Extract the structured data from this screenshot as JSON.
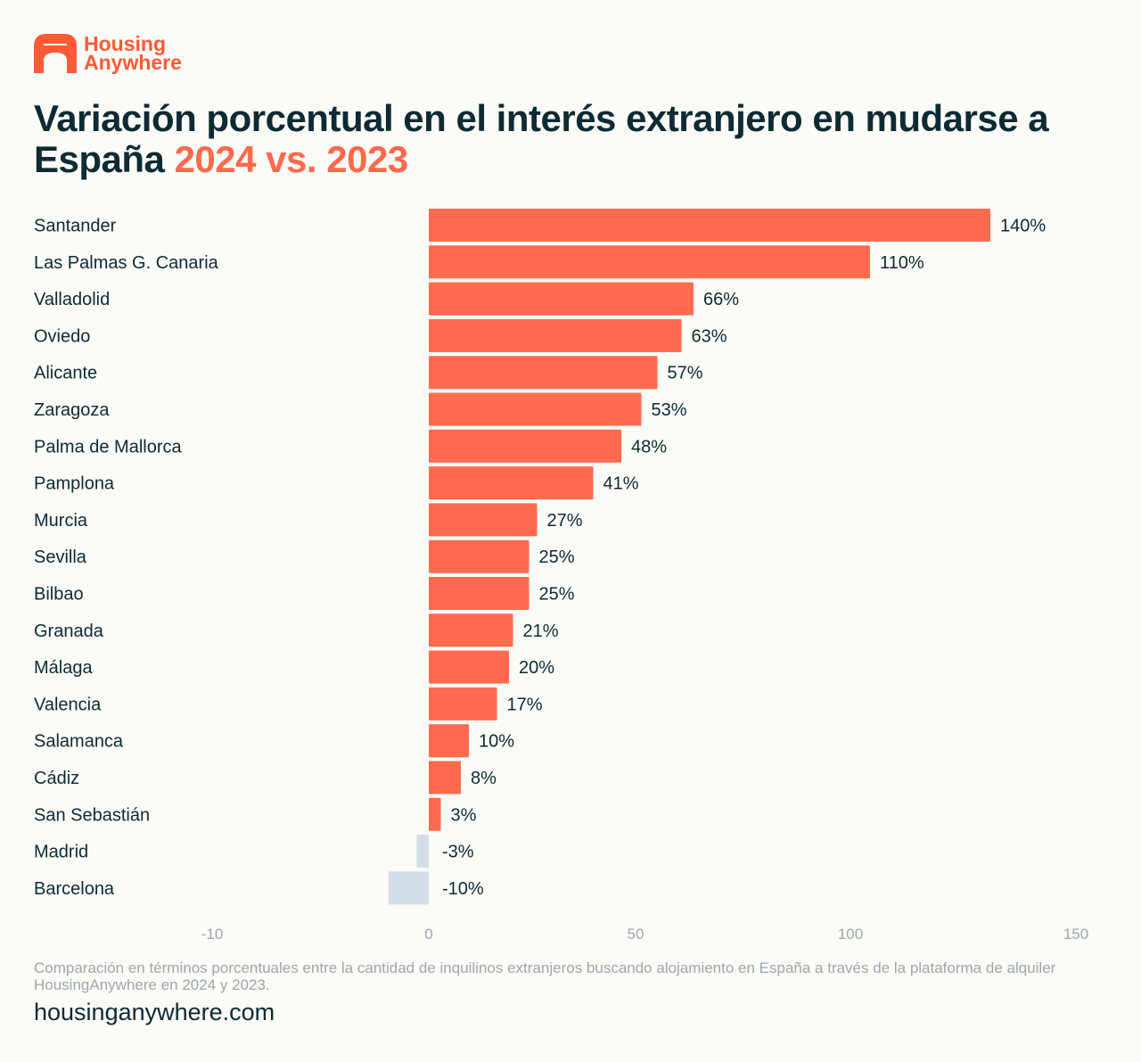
{
  "brand": {
    "name_line1": "Housing",
    "name_line2": "Anywhere",
    "logo": "housinganywhere-logo-icon",
    "color": "#ff5a36"
  },
  "title": {
    "main": "Variación porcentual en el interés extranjero en mudarse a España",
    "highlight": "2024 vs. 2023"
  },
  "colors": {
    "positive": "#ff6b4f",
    "negative": "#d3dde5",
    "text": "#0e2a33",
    "axis": "#9ea7ab"
  },
  "chart_data": {
    "type": "bar",
    "orientation": "horizontal",
    "categories": [
      "Santander",
      "Las Palmas G. Canaria",
      "Valladolid",
      "Oviedo",
      "Alicante",
      "Zaragoza",
      "Palma de Mallorca",
      "Pamplona",
      "Murcia",
      "Sevilla",
      "Bilbao",
      "Granada",
      "Málaga",
      "Valencia",
      "Salamanca",
      "Cádiz",
      "San Sebastián",
      "Madrid",
      "Barcelona"
    ],
    "values": [
      140,
      110,
      66,
      63,
      57,
      53,
      48,
      41,
      27,
      25,
      25,
      21,
      20,
      17,
      10,
      8,
      3,
      -3,
      -10
    ],
    "labels": [
      "140%",
      "110%",
      "66%",
      "63%",
      "57%",
      "53%",
      "48%",
      "41%",
      "27%",
      "25%",
      "25%",
      "21%",
      "20%",
      "17%",
      "10%",
      "8%",
      "3%",
      "-3%",
      "-10%"
    ],
    "xticks": [
      -10,
      0,
      50,
      100,
      150
    ],
    "xlim": [
      -50,
      150
    ],
    "unit": "%",
    "grid": false,
    "legend": "none"
  },
  "footnote": "Comparación en términos porcentuales entre la cantidad de inquilinos extranjeros buscando alojamiento en España a través de la plataforma de alquiler HousingAnywhere en 2024 y 2023.",
  "website": "housinganywhere.com"
}
